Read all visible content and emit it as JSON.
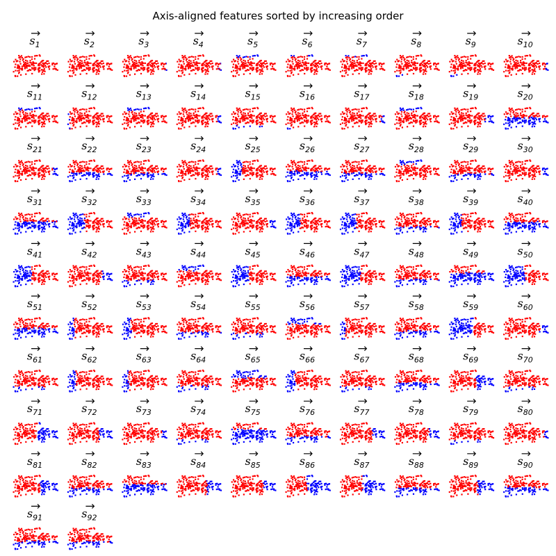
{
  "chart_data": {
    "type": "scatter",
    "title": "Axis-aligned features sorted by increasing order",
    "panel_label_base": "s",
    "panel_count": 92,
    "columns": 10,
    "colors": {
      "in_region": "#ff0000",
      "out_region": "#0000ff"
    },
    "panels": [
      {
        "index": "1",
        "split": {
          "axis": "none",
          "side": "none",
          "t": 0
        }
      },
      {
        "index": "2",
        "split": {
          "axis": "none",
          "side": "none",
          "t": 0
        }
      },
      {
        "index": "3",
        "split": {
          "axis": "x",
          "side": "right",
          "t": 0.97
        }
      },
      {
        "index": "4",
        "split": {
          "axis": "x",
          "side": "right",
          "t": 0.96
        }
      },
      {
        "index": "5",
        "split": {
          "axis": "y",
          "side": "top",
          "t": 0.1
        }
      },
      {
        "index": "6",
        "split": {
          "axis": "y",
          "side": "top",
          "t": 0.05
        }
      },
      {
        "index": "7",
        "split": {
          "axis": "y",
          "side": "top",
          "t": 0.08
        }
      },
      {
        "index": "8",
        "split": {
          "axis": "y",
          "side": "bottom",
          "t": 0.88
        }
      },
      {
        "index": "9",
        "split": {
          "axis": "y",
          "side": "bottom",
          "t": 0.85
        }
      },
      {
        "index": "10",
        "split": {
          "axis": "x",
          "side": "right",
          "t": 0.95
        }
      },
      {
        "index": "11",
        "split": {
          "axis": "y",
          "side": "top",
          "t": 0.12
        }
      },
      {
        "index": "12",
        "split": {
          "axis": "x",
          "side": "left",
          "t": 0.04
        }
      },
      {
        "index": "13",
        "split": {
          "axis": "y",
          "side": "top",
          "t": 0.15
        }
      },
      {
        "index": "14",
        "split": {
          "axis": "x",
          "side": "right",
          "t": 0.9
        }
      },
      {
        "index": "15",
        "split": {
          "axis": "y",
          "side": "bottom",
          "t": 0.82
        }
      },
      {
        "index": "16",
        "split": {
          "axis": "y",
          "side": "bottom",
          "t": 0.9
        }
      },
      {
        "index": "17",
        "split": {
          "axis": "x",
          "side": "right",
          "t": 0.93
        }
      },
      {
        "index": "18",
        "split": {
          "axis": "y",
          "side": "top",
          "t": 0.18
        }
      },
      {
        "index": "19",
        "split": {
          "axis": "x",
          "side": "right",
          "t": 0.8
        }
      },
      {
        "index": "20",
        "split": {
          "axis": "y",
          "side": "bottom",
          "t": 0.45
        }
      },
      {
        "index": "21",
        "split": {
          "axis": "x",
          "side": "right",
          "t": 0.88
        }
      },
      {
        "index": "22",
        "split": {
          "axis": "y",
          "side": "bottom",
          "t": 0.55
        }
      },
      {
        "index": "23",
        "split": {
          "axis": "y",
          "side": "bottom",
          "t": 0.6
        }
      },
      {
        "index": "24",
        "split": {
          "axis": "x",
          "side": "right",
          "t": 0.92
        }
      },
      {
        "index": "25",
        "split": {
          "axis": "x",
          "side": "left",
          "t": 0.25
        }
      },
      {
        "index": "26",
        "split": {
          "axis": "y",
          "side": "bottom",
          "t": 0.5
        }
      },
      {
        "index": "27",
        "split": {
          "axis": "y",
          "side": "bottom",
          "t": 0.58
        }
      },
      {
        "index": "28",
        "split": {
          "axis": "y",
          "side": "top",
          "t": 0.2
        }
      },
      {
        "index": "29",
        "split": {
          "axis": "y",
          "side": "bottom",
          "t": 0.62
        }
      },
      {
        "index": "30",
        "split": {
          "axis": "x",
          "side": "right",
          "t": 0.86
        }
      },
      {
        "index": "31",
        "split": {
          "axis": "y",
          "side": "bottom",
          "t": 0.4
        }
      },
      {
        "index": "32",
        "split": {
          "axis": "x",
          "side": "left",
          "t": 0.38
        }
      },
      {
        "index": "33",
        "split": {
          "axis": "y",
          "side": "top",
          "t": 0.22
        }
      },
      {
        "index": "34",
        "split": {
          "axis": "x",
          "side": "left",
          "t": 0.3
        }
      },
      {
        "index": "35",
        "split": {
          "axis": "x",
          "side": "right",
          "t": 0.85
        }
      },
      {
        "index": "36",
        "split": {
          "axis": "x",
          "side": "left",
          "t": 0.32
        }
      },
      {
        "index": "37",
        "split": {
          "axis": "x",
          "side": "left",
          "t": 0.36
        }
      },
      {
        "index": "38",
        "split": {
          "axis": "y",
          "side": "bottom",
          "t": 0.65
        }
      },
      {
        "index": "39",
        "split": {
          "axis": "x",
          "side": "left",
          "t": 0.28
        }
      },
      {
        "index": "40",
        "split": {
          "axis": "y",
          "side": "bottom",
          "t": 0.42
        }
      },
      {
        "index": "41",
        "split": {
          "axis": "x",
          "side": "left",
          "t": 0.42
        }
      },
      {
        "index": "42",
        "split": {
          "axis": "x",
          "side": "right",
          "t": 0.78
        }
      },
      {
        "index": "43",
        "split": {
          "axis": "y",
          "side": "bottom",
          "t": 0.68
        }
      },
      {
        "index": "44",
        "split": {
          "axis": "y",
          "side": "top",
          "t": 0.25
        }
      },
      {
        "index": "45",
        "split": {
          "axis": "x",
          "side": "left",
          "t": 0.4
        }
      },
      {
        "index": "46",
        "split": {
          "axis": "y",
          "side": "bottom",
          "t": 0.52
        }
      },
      {
        "index": "47",
        "split": {
          "axis": "x",
          "side": "left",
          "t": 0.44
        }
      },
      {
        "index": "48",
        "split": {
          "axis": "y",
          "side": "bottom",
          "t": 0.64
        }
      },
      {
        "index": "49",
        "split": {
          "axis": "y",
          "side": "bottom",
          "t": 0.35
        }
      },
      {
        "index": "50",
        "split": {
          "axis": "x",
          "side": "left",
          "t": 0.48
        }
      },
      {
        "index": "51",
        "split": {
          "axis": "y",
          "side": "bottom",
          "t": 0.48
        }
      },
      {
        "index": "52",
        "split": {
          "axis": "x",
          "side": "left",
          "t": 0.15
        }
      },
      {
        "index": "53",
        "split": {
          "axis": "x",
          "side": "left",
          "t": 0.2
        }
      },
      {
        "index": "54",
        "split": {
          "axis": "y",
          "side": "bottom",
          "t": 0.66
        }
      },
      {
        "index": "55",
        "split": {
          "axis": "y",
          "side": "bottom",
          "t": 0.7
        }
      },
      {
        "index": "56",
        "split": {
          "axis": "y",
          "side": "top",
          "t": 0.3
        }
      },
      {
        "index": "57",
        "split": {
          "axis": "x",
          "side": "left",
          "t": 0.12
        }
      },
      {
        "index": "58",
        "split": {
          "axis": "y",
          "side": "bottom",
          "t": 0.6
        }
      },
      {
        "index": "59",
        "split": {
          "axis": "x",
          "side": "left",
          "t": 0.55
        }
      },
      {
        "index": "60",
        "split": {
          "axis": "x",
          "side": "right",
          "t": 0.82
        }
      },
      {
        "index": "61",
        "split": {
          "axis": "y",
          "side": "bottom",
          "t": 0.72
        }
      },
      {
        "index": "62",
        "split": {
          "axis": "x",
          "side": "left",
          "t": 0.18
        }
      },
      {
        "index": "63",
        "split": {
          "axis": "x",
          "side": "left",
          "t": 0.14
        }
      },
      {
        "index": "64",
        "split": {
          "axis": "y",
          "side": "bottom",
          "t": 0.7
        }
      },
      {
        "index": "65",
        "split": {
          "axis": "y",
          "side": "top",
          "t": 0.35
        }
      },
      {
        "index": "66",
        "split": {
          "axis": "x",
          "side": "left",
          "t": 0.22
        }
      },
      {
        "index": "67",
        "split": {
          "axis": "y",
          "side": "bottom",
          "t": 0.74
        }
      },
      {
        "index": "68",
        "split": {
          "axis": "y",
          "side": "bottom",
          "t": 0.55
        }
      },
      {
        "index": "69",
        "split": {
          "axis": "x",
          "side": "right",
          "t": 0.6
        }
      },
      {
        "index": "70",
        "split": {
          "axis": "y",
          "side": "bottom",
          "t": 0.76
        }
      },
      {
        "index": "71",
        "split": {
          "axis": "x",
          "side": "right",
          "t": 0.55
        }
      },
      {
        "index": "72",
        "split": {
          "axis": "x",
          "side": "right",
          "t": 0.7
        }
      },
      {
        "index": "73",
        "split": {
          "axis": "x",
          "side": "right",
          "t": 0.88
        }
      },
      {
        "index": "74",
        "split": {
          "axis": "y",
          "side": "bottom",
          "t": 0.72
        }
      },
      {
        "index": "75",
        "split": {
          "axis": "y",
          "side": "bottom",
          "t": 0.3
        }
      },
      {
        "index": "76",
        "split": {
          "axis": "y",
          "side": "bottom",
          "t": 0.62
        }
      },
      {
        "index": "77",
        "split": {
          "axis": "x",
          "side": "right",
          "t": 0.72
        }
      },
      {
        "index": "78",
        "split": {
          "axis": "x",
          "side": "right",
          "t": 0.78
        }
      },
      {
        "index": "79",
        "split": {
          "axis": "y",
          "side": "bottom",
          "t": 0.78
        }
      },
      {
        "index": "80",
        "split": {
          "axis": "x",
          "side": "right",
          "t": 0.9
        }
      },
      {
        "index": "81",
        "split": {
          "axis": "x",
          "side": "right",
          "t": 0.6
        }
      },
      {
        "index": "82",
        "split": {
          "axis": "y",
          "side": "bottom",
          "t": 0.58
        }
      },
      {
        "index": "83",
        "split": {
          "axis": "y",
          "side": "bottom",
          "t": 0.4
        }
      },
      {
        "index": "84",
        "split": {
          "axis": "x",
          "side": "right",
          "t": 0.68
        }
      },
      {
        "index": "85",
        "split": {
          "axis": "x",
          "side": "right",
          "t": 0.72
        }
      },
      {
        "index": "86",
        "split": {
          "axis": "x",
          "side": "right",
          "t": 0.48
        }
      },
      {
        "index": "87",
        "split": {
          "axis": "x",
          "side": "right",
          "t": 0.5
        }
      },
      {
        "index": "88",
        "split": {
          "axis": "y",
          "side": "bottom",
          "t": 0.56
        }
      },
      {
        "index": "89",
        "split": {
          "axis": "x",
          "side": "right",
          "t": 0.64
        }
      },
      {
        "index": "90",
        "split": {
          "axis": "y",
          "side": "bottom",
          "t": 0.54
        }
      },
      {
        "index": "91",
        "split": {
          "axis": "y",
          "side": "bottom",
          "t": 0.6
        }
      },
      {
        "index": "92",
        "split": {
          "axis": "y",
          "side": "bottom",
          "t": 0.62
        }
      }
    ],
    "xlabel": "",
    "ylabel": "",
    "grid": false,
    "axes_visible": false
  }
}
